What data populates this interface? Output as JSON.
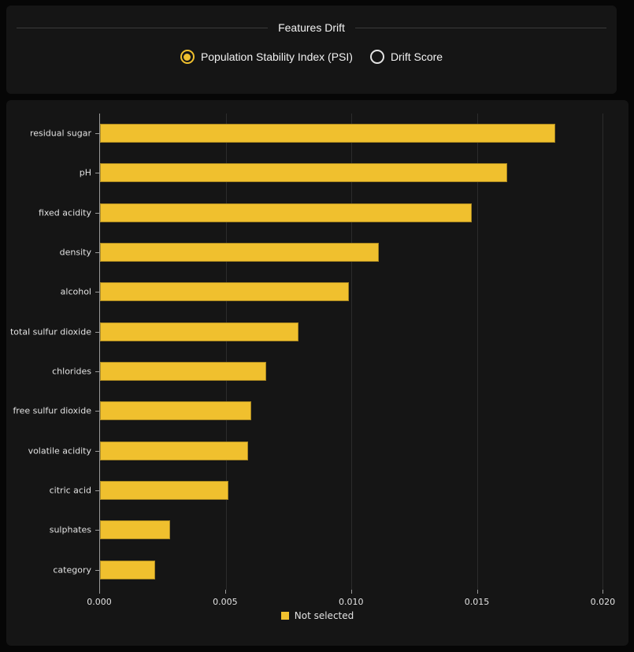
{
  "header": {
    "title": "Features Drift",
    "options": [
      {
        "name": "population-stability-index-psi",
        "label": "Population Stability Index (PSI)",
        "selected": true
      },
      {
        "name": "drift-score",
        "label": "Drift Score",
        "selected": false
      }
    ]
  },
  "chart_data": {
    "type": "bar",
    "orientation": "horizontal",
    "title": "",
    "xlabel": "",
    "ylabel": "",
    "categories": [
      "residual sugar",
      "pH",
      "fixed acidity",
      "density",
      "alcohol",
      "total sulfur dioxide",
      "chlorides",
      "free sulfur dioxide",
      "volatile acidity",
      "citric acid",
      "sulphates",
      "category"
    ],
    "values": [
      0.0181,
      0.0162,
      0.0148,
      0.0111,
      0.0099,
      0.0079,
      0.0066,
      0.006,
      0.0059,
      0.0051,
      0.0028,
      0.0022
    ],
    "xlim": [
      0,
      0.0203
    ],
    "x_ticks": [
      {
        "value": 0,
        "label": "0.000"
      },
      {
        "value": 0.005,
        "label": "0.005"
      },
      {
        "value": 0.01,
        "label": "0.010"
      },
      {
        "value": 0.015,
        "label": "0.015"
      },
      {
        "value": 0.02,
        "label": "0.020"
      }
    ],
    "grid": "vertical",
    "legend": {
      "position": "bottom-center",
      "items": [
        {
          "label": "Not selected",
          "color": "#F0C02E"
        }
      ]
    }
  },
  "colors": {
    "accent": "#F0C02E",
    "page_bg": "#060606",
    "panel_bg": "#151515",
    "gridline": "#2c2c2c",
    "axis": "#9a9a9a",
    "divider": "#3a3a3a",
    "text_primary": "#f2f2f2",
    "text_chart": "#e2e2e2"
  }
}
